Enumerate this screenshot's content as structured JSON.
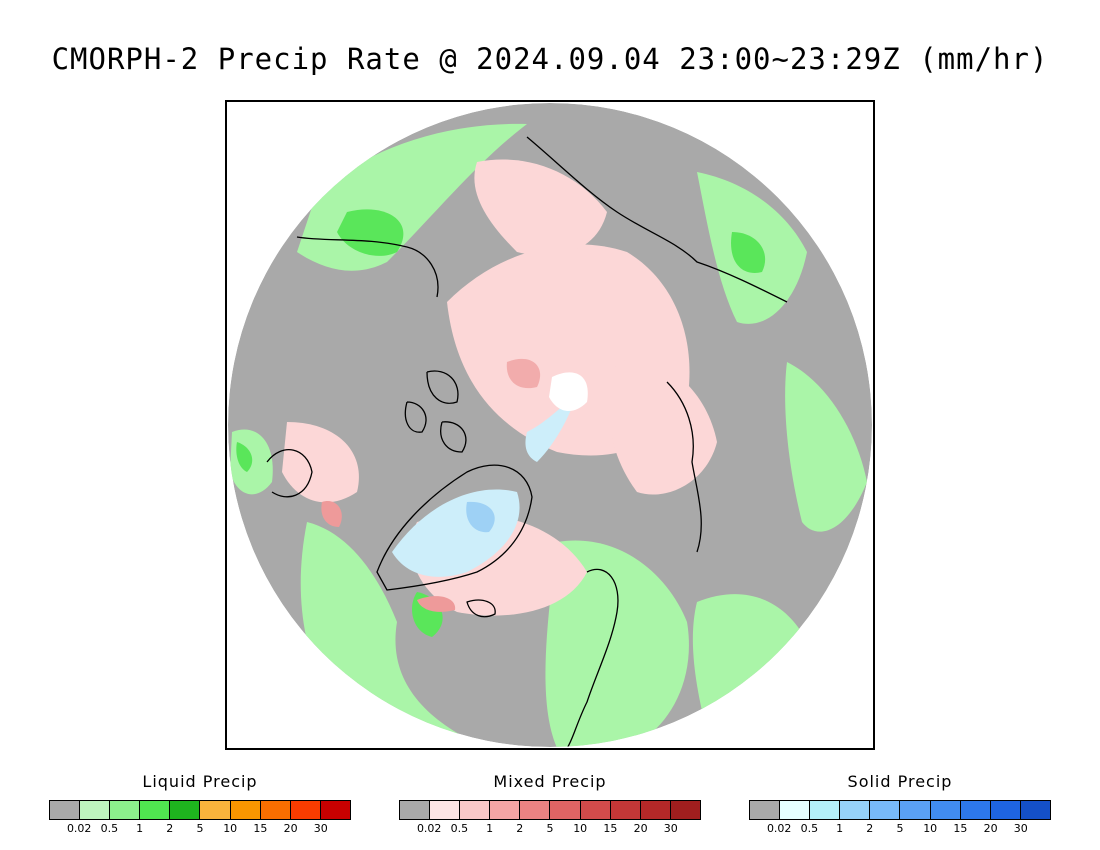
{
  "title": "CMORPH-2 Precip Rate @ 2024.09.04 23:00~23:29Z (mm/hr)",
  "map": {
    "projection": "north polar stereographic",
    "category_colors": {
      "no_precip": "#a9a9a9",
      "liquid_light": "#aaf5a8",
      "liquid_medium": "#5ae65a",
      "mixed_light": "#fcd7d7",
      "mixed_medium": "#ee9a9a",
      "solid_light": "#cdeefa",
      "solid_medium": "#9ed1f5",
      "outside": "#ffffff",
      "coastline": "#000000"
    }
  },
  "legends": [
    {
      "title": "Liquid Precip",
      "colors": [
        "#a9a9a9",
        "#bef5be",
        "#8cf08c",
        "#50e650",
        "#1eb41e",
        "#fab43c",
        "#fa9600",
        "#fa6e00",
        "#fa3c00",
        "#c80000"
      ],
      "ticks": [
        "0.02",
        "0.5",
        "1",
        "2",
        "5",
        "10",
        "15",
        "20",
        "30"
      ]
    },
    {
      "title": "Mixed Precip",
      "colors": [
        "#a9a9a9",
        "#fce4e4",
        "#fac8c8",
        "#f5a5a5",
        "#eb8282",
        "#e06464",
        "#d24b4b",
        "#c33737",
        "#b42828",
        "#a01e1e"
      ],
      "ticks": [
        "0.02",
        "0.5",
        "1",
        "2",
        "5",
        "10",
        "15",
        "20",
        "30"
      ]
    },
    {
      "title": "Solid Precip",
      "colors": [
        "#a9a9a9",
        "#e6ffff",
        "#b4f0fa",
        "#96d2fa",
        "#78b9fa",
        "#5aa0f5",
        "#418cf0",
        "#2d78eb",
        "#1e64e1",
        "#1450c8"
      ],
      "ticks": [
        "0.02",
        "0.5",
        "1",
        "2",
        "5",
        "10",
        "15",
        "20",
        "30"
      ]
    }
  ]
}
